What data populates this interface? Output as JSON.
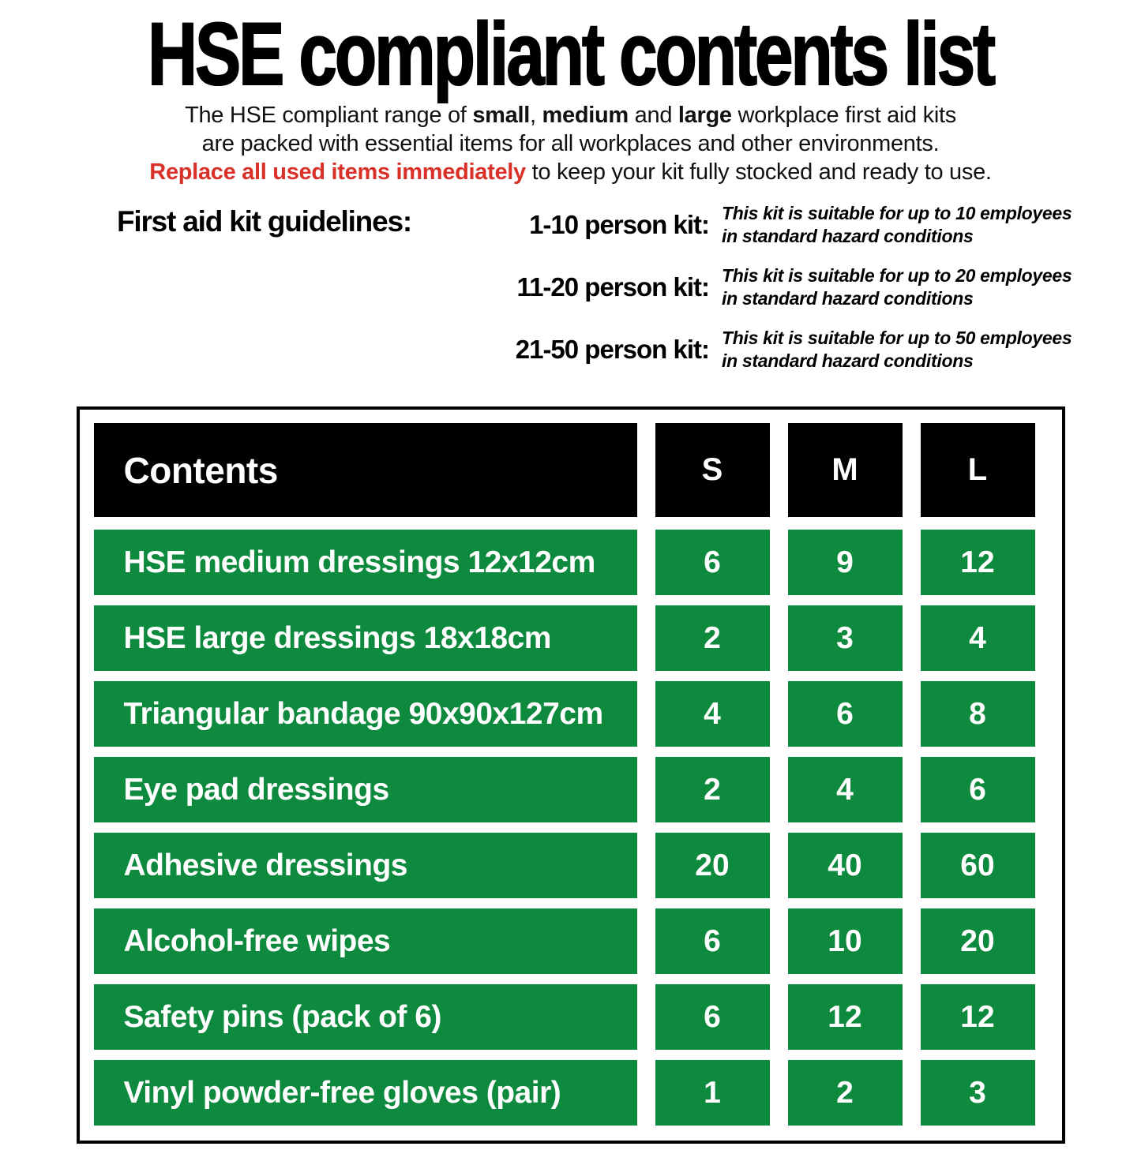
{
  "title": "HSE compliant contents list",
  "intro": {
    "l1a": "The HSE compliant range of ",
    "l1b": "small",
    "l1c": ", ",
    "l1d": "medium",
    "l1e": " and ",
    "l1f": "large",
    "l1g": " workplace first aid kits",
    "l2": "are packed with essential items for all workplaces and other environments.",
    "l3a": "Replace all used items immediately",
    "l3b": " to keep your kit fully stocked and ready to use."
  },
  "guidelines": {
    "heading": "First aid kit guidelines:",
    "items": [
      {
        "label": "1-10 person kit:",
        "desc1": "This kit is suitable for up to 10 employees",
        "desc2": "in standard hazard conditions"
      },
      {
        "label": "11-20 person kit:",
        "desc1": "This kit is suitable for up to 20 employees",
        "desc2": "in standard hazard conditions"
      },
      {
        "label": "21-50 person kit:",
        "desc1": "This kit is suitable for up to 50 employees",
        "desc2": "in standard hazard conditions"
      }
    ]
  },
  "table": {
    "contents_header": "Contents",
    "cols": [
      "S",
      "M",
      "L"
    ],
    "rows": [
      {
        "label": "HSE medium dressings 12x12cm",
        "s": "6",
        "m": "9",
        "l": "12"
      },
      {
        "label": "HSE large dressings 18x18cm",
        "s": "2",
        "m": "3",
        "l": "4"
      },
      {
        "label": "Triangular bandage 90x90x127cm",
        "s": "4",
        "m": "6",
        "l": "8"
      },
      {
        "label": "Eye pad dressings",
        "s": "2",
        "m": "4",
        "l": "6"
      },
      {
        "label": "Adhesive dressings",
        "s": "20",
        "m": "40",
        "l": "60"
      },
      {
        "label": "Alcohol-free wipes",
        "s": "6",
        "m": "10",
        "l": "20"
      },
      {
        "label": "Safety pins (pack of 6)",
        "s": "6",
        "m": "12",
        "l": "12"
      },
      {
        "label": "Vinyl powder-free gloves (pair)",
        "s": "1",
        "m": "2",
        "l": "3"
      }
    ]
  },
  "colors": {
    "green": "#0e8a3e",
    "red": "#d93128",
    "black": "#000000"
  }
}
